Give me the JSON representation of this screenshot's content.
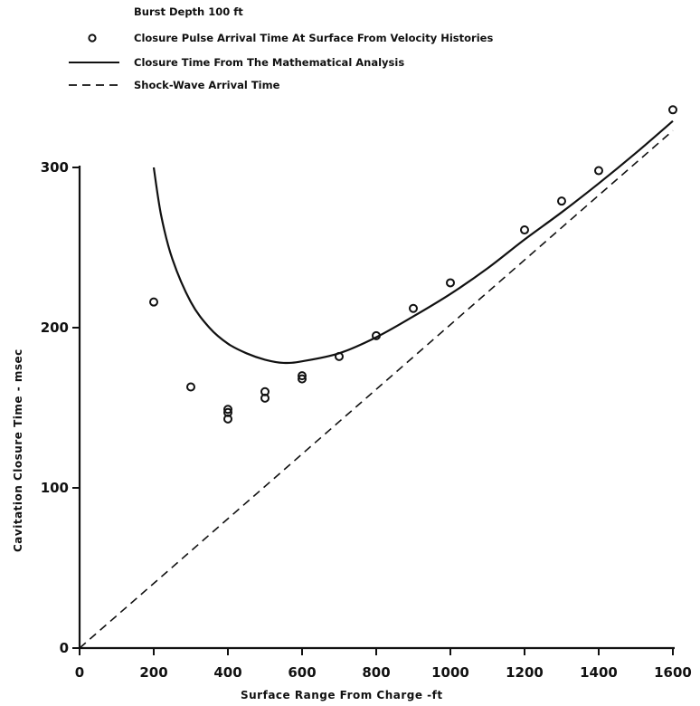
{
  "chart_data": {
    "type": "scatter",
    "header": "Burst Depth 100 ft",
    "xlabel": "Surface Range From Charge -ft",
    "ylabel": "Cavitation Closure Time - msec",
    "xlim": [
      0,
      1600
    ],
    "ylim": [
      0,
      300
    ],
    "x_ticks": [
      0,
      200,
      400,
      600,
      800,
      1000,
      1200,
      1400,
      1600
    ],
    "y_ticks": [
      0,
      100,
      200,
      300
    ],
    "grid": false,
    "legend_position": "top-left",
    "legend": [
      {
        "marker": "circle",
        "label": "Closure Pulse Arrival Time At Surface From Velocity Histories"
      },
      {
        "marker": "solid-line",
        "label": "Closure Time From The Mathematical Analysis"
      },
      {
        "marker": "dashed-line",
        "label": "Shock-Wave Arrival Time"
      }
    ],
    "series": [
      {
        "name": "Closure Pulse Arrival Time At Surface From Velocity Histories",
        "style": "circle",
        "points": [
          [
            200,
            216
          ],
          [
            300,
            163
          ],
          [
            400,
            149
          ],
          [
            400,
            147
          ],
          [
            400,
            143
          ],
          [
            500,
            160
          ],
          [
            500,
            156
          ],
          [
            600,
            170
          ],
          [
            600,
            168
          ],
          [
            700,
            182
          ],
          [
            800,
            195
          ],
          [
            900,
            212
          ],
          [
            1000,
            228
          ],
          [
            1200,
            261
          ],
          [
            1300,
            279
          ],
          [
            1400,
            298
          ],
          [
            1600,
            336
          ]
        ]
      },
      {
        "name": "Closure Time From The Mathematical Analysis",
        "style": "solid-line",
        "points": [
          [
            200,
            300
          ],
          [
            220,
            270
          ],
          [
            250,
            243
          ],
          [
            300,
            216
          ],
          [
            350,
            200
          ],
          [
            400,
            190
          ],
          [
            450,
            184
          ],
          [
            500,
            180
          ],
          [
            550,
            178
          ],
          [
            600,
            179
          ],
          [
            700,
            184
          ],
          [
            800,
            194
          ],
          [
            900,
            207
          ],
          [
            1000,
            221
          ],
          [
            1100,
            237
          ],
          [
            1200,
            255
          ],
          [
            1300,
            272
          ],
          [
            1400,
            290
          ],
          [
            1500,
            309
          ],
          [
            1600,
            329
          ]
        ]
      },
      {
        "name": "Shock-Wave Arrival Time",
        "style": "dashed-line",
        "points": [
          [
            0,
            0
          ],
          [
            1600,
            323
          ]
        ]
      }
    ]
  }
}
